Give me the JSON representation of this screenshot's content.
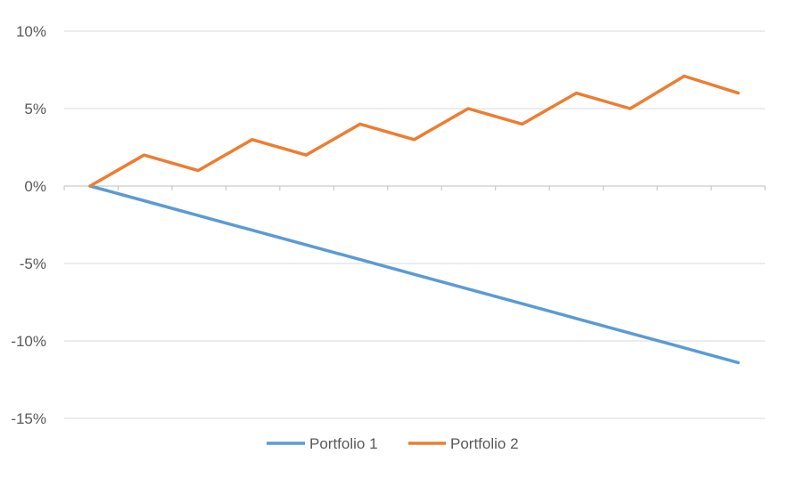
{
  "chart_data": {
    "type": "line",
    "title": "",
    "xlabel": "",
    "ylabel": "",
    "ylim": [
      -15,
      10
    ],
    "y_ticks": [
      10,
      5,
      0,
      -5,
      -10,
      -15
    ],
    "y_tick_format": "%",
    "x": [
      0,
      1,
      2,
      3,
      4,
      5,
      6,
      7,
      8,
      9,
      10,
      11,
      12
    ],
    "grid": true,
    "legend": "bottom",
    "series": [
      {
        "name": "Portfolio 1",
        "color": "#5B9BD5",
        "values": [
          0,
          -0.95,
          -1.9,
          -2.85,
          -3.8,
          -4.75,
          -5.7,
          -6.65,
          -7.6,
          -8.55,
          -9.5,
          -10.45,
          -11.4
        ]
      },
      {
        "name": "Portfolio 2",
        "color": "#ED7D31",
        "values": [
          0,
          2,
          1,
          3,
          2,
          4,
          3,
          5,
          4,
          6,
          5,
          7.1,
          6
        ]
      }
    ]
  }
}
